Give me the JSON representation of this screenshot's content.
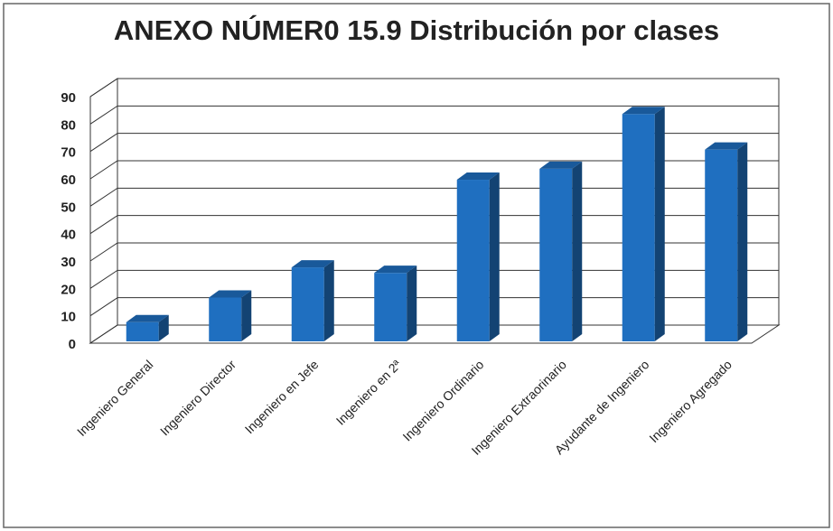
{
  "chart_data": {
    "type": "bar3d",
    "title": "ANEXO NÚMER0 15.9 Distribución por clases",
    "categories": [
      "Ingeniero General",
      "Ingeniero Director",
      "Ingeniero en Jefe",
      "Ingeniero en 2ª",
      "Ingeniero Ordinario",
      "Ingeniero Extraorinario",
      "Ayudante de Ingeniero",
      "Ingeniero Agregado"
    ],
    "values": [
      7,
      16,
      27,
      25,
      59,
      63,
      83,
      70
    ],
    "color": "#1f6fc0",
    "ylim": [
      0,
      90
    ],
    "yticks": [
      0,
      10,
      20,
      30,
      40,
      50,
      60,
      70,
      80,
      90
    ],
    "grid": true
  }
}
